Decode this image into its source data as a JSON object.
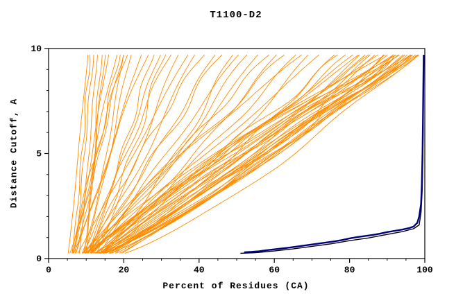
{
  "chart_data": {
    "type": "line",
    "title": "T1100-D2",
    "xlabel": "Percent of Residues (CA)",
    "ylabel": "Distance Cutoff, A",
    "xlim": [
      0,
      100
    ],
    "ylim": [
      0,
      10
    ],
    "x_ticks": [
      0,
      20,
      40,
      60,
      80,
      100
    ],
    "x_minor_step": 5,
    "y_ticks": [
      0,
      5,
      10
    ],
    "y_minor_step": 1,
    "grid": false,
    "legend": "none",
    "colors": {
      "orange": "#FF8C00",
      "navy": "#000080",
      "black": "#000000",
      "frame": "#000000"
    },
    "navy_series": {
      "points": [
        [
          52,
          0.3
        ],
        [
          54,
          0.32
        ],
        [
          56,
          0.35
        ],
        [
          58,
          0.4
        ],
        [
          60,
          0.44
        ],
        [
          62,
          0.48
        ],
        [
          64,
          0.52
        ],
        [
          66,
          0.57
        ],
        [
          68,
          0.62
        ],
        [
          70,
          0.67
        ],
        [
          72,
          0.72
        ],
        [
          74,
          0.77
        ],
        [
          76,
          0.82
        ],
        [
          78,
          0.88
        ],
        [
          80,
          0.96
        ],
        [
          82,
          1.02
        ],
        [
          84,
          1.07
        ],
        [
          86,
          1.12
        ],
        [
          88,
          1.18
        ],
        [
          90,
          1.26
        ],
        [
          92,
          1.32
        ],
        [
          94,
          1.38
        ],
        [
          96,
          1.46
        ],
        [
          97,
          1.52
        ],
        [
          98,
          1.7
        ],
        [
          98.5,
          2.0
        ],
        [
          99,
          2.6
        ],
        [
          99.2,
          3.5
        ],
        [
          99.4,
          5.0
        ],
        [
          99.5,
          6.5
        ],
        [
          99.6,
          8.0
        ],
        [
          99.7,
          9.7
        ]
      ]
    },
    "black_series": {
      "points": [
        [
          51,
          0.25
        ],
        [
          55,
          0.28
        ],
        [
          60,
          0.36
        ],
        [
          65,
          0.46
        ],
        [
          70,
          0.58
        ],
        [
          75,
          0.7
        ],
        [
          80,
          0.85
        ],
        [
          85,
          0.98
        ],
        [
          90,
          1.15
        ],
        [
          94,
          1.28
        ],
        [
          97,
          1.42
        ],
        [
          98.5,
          1.6
        ],
        [
          99,
          2.2
        ],
        [
          99.3,
          3.2
        ],
        [
          99.5,
          5.0
        ],
        [
          99.6,
          7.0
        ],
        [
          99.7,
          9.7
        ]
      ]
    },
    "orange_curves": [
      [
        5,
        10.5,
        0.9
      ],
      [
        6,
        11,
        0.8
      ],
      [
        7,
        12,
        1.0
      ],
      [
        8,
        13,
        0.9
      ],
      [
        9,
        14,
        0.7
      ],
      [
        10,
        15,
        1.1
      ],
      [
        6,
        16,
        0.85
      ],
      [
        5,
        18,
        0.8
      ],
      [
        6,
        19,
        0.9
      ],
      [
        7,
        20,
        1.0
      ],
      [
        8,
        20,
        0.7
      ],
      [
        6,
        21,
        1.2
      ],
      [
        9,
        22,
        0.85
      ],
      [
        6,
        25,
        0.9
      ],
      [
        7,
        27,
        1.1
      ],
      [
        8,
        28,
        0.8
      ],
      [
        10,
        30,
        1.0
      ],
      [
        9,
        31,
        0.75
      ],
      [
        11,
        33,
        1.2
      ],
      [
        12,
        35,
        0.95
      ],
      [
        7,
        38,
        1.0
      ],
      [
        8,
        40,
        0.85
      ],
      [
        10,
        42,
        1.15
      ],
      [
        9,
        45,
        0.9
      ],
      [
        11,
        47,
        1.05
      ],
      [
        12,
        50,
        0.8
      ],
      [
        13,
        52,
        1.1
      ],
      [
        10,
        55,
        0.95
      ],
      [
        8,
        58,
        0.9
      ],
      [
        9,
        60,
        1.0
      ],
      [
        10,
        62,
        0.85
      ],
      [
        11,
        65,
        1.1
      ],
      [
        12,
        68,
        0.95
      ],
      [
        9,
        70,
        1.2
      ],
      [
        13,
        72,
        0.9
      ],
      [
        10,
        75,
        1.05
      ],
      [
        14,
        78,
        0.85
      ],
      [
        11,
        80,
        1.0
      ],
      [
        7,
        82,
        0.9
      ],
      [
        8,
        84,
        1.0
      ],
      [
        9,
        85,
        0.8
      ],
      [
        10,
        86,
        1.1
      ],
      [
        11,
        87,
        0.95
      ],
      [
        12,
        88,
        0.85
      ],
      [
        8,
        89,
        1.05
      ],
      [
        9,
        90,
        0.9
      ],
      [
        10,
        91,
        1.15
      ],
      [
        11,
        92,
        0.8
      ],
      [
        12,
        93,
        1.0
      ],
      [
        13,
        94,
        0.9
      ],
      [
        9,
        95,
        1.1
      ],
      [
        10,
        95,
        0.85
      ],
      [
        11,
        96,
        0.95
      ],
      [
        12,
        96,
        1.05
      ],
      [
        13,
        97,
        0.9
      ],
      [
        14,
        97,
        1.0
      ],
      [
        10,
        98,
        0.8
      ],
      [
        11,
        98,
        1.1
      ],
      [
        12,
        99,
        0.95
      ],
      [
        13,
        99,
        0.85
      ],
      [
        14,
        100,
        1.0
      ],
      [
        15,
        100,
        0.9
      ],
      [
        16,
        100,
        1.05
      ],
      [
        8,
        92,
        1.2
      ],
      [
        9,
        94,
        0.75
      ],
      [
        10,
        96,
        1.2
      ],
      [
        12,
        97,
        0.8
      ],
      [
        13,
        98,
        1.15
      ],
      [
        15,
        99,
        0.75
      ],
      [
        16,
        98,
        0.9
      ],
      [
        14,
        95,
        1.25
      ],
      [
        7,
        90,
        0.7
      ],
      [
        17,
        100,
        0.95
      ]
    ]
  }
}
